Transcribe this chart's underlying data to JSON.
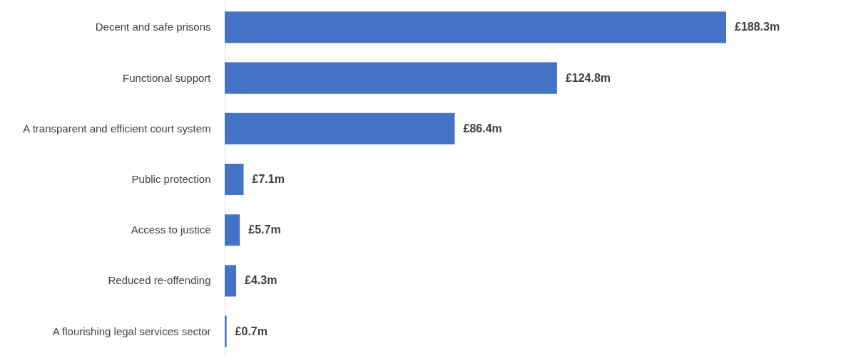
{
  "chart_data": {
    "type": "bar",
    "orientation": "horizontal",
    "categories": [
      "Decent and safe prisons",
      "Functional support",
      "A transparent and efficient court system",
      "Public protection",
      "Access to justice",
      "Reduced re-offending",
      "A flourishing legal services sector"
    ],
    "values": [
      188.3,
      124.8,
      86.4,
      7.1,
      5.7,
      4.3,
      0.7
    ],
    "value_labels": [
      "£188.3m",
      "£124.8m",
      "£86.4m",
      "£7.1m",
      "£5.7m",
      "£4.3m",
      "£0.7m"
    ],
    "color": "#4472c4"
  }
}
